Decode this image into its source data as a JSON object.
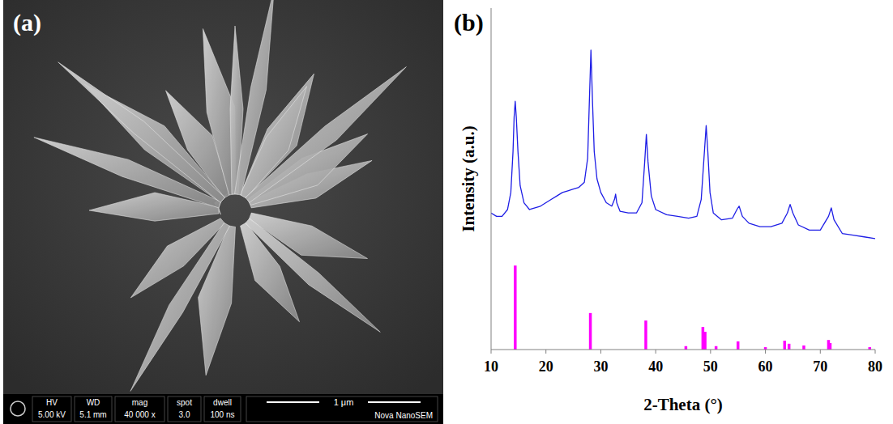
{
  "panel_labels": [
    "(a)",
    "(b)"
  ],
  "sem_image": {
    "info": [
      {
        "label": "HV",
        "value": "5.00 kV"
      },
      {
        "label": "WD",
        "value": "5.1 mm"
      },
      {
        "label": "mag",
        "value": "40 000 x"
      },
      {
        "label": "spot",
        "value": "3.0"
      },
      {
        "label": "dwell",
        "value": "100 ns"
      }
    ],
    "scale_bar": "1 μm",
    "instrument": "Nova NanoSEM"
  },
  "chart_data": {
    "type": "line",
    "x_label": "2-Theta (°)",
    "y_label": "Intensity (a.u.)",
    "xlim": [
      10,
      80
    ],
    "xticks": [
      10,
      20,
      30,
      40,
      50,
      60,
      70,
      80
    ],
    "ylim": [
      0,
      100
    ],
    "tick_labels": "x",
    "series": [
      {
        "type": "line",
        "color": "#1e1ee6",
        "x": [
          10,
          11,
          12,
          13,
          13.6,
          14.0,
          14.2,
          14.4,
          14.6,
          14.9,
          15.3,
          16,
          17,
          18,
          19,
          20,
          21,
          22,
          23,
          24,
          25,
          26,
          27,
          27.6,
          27.9,
          28.2,
          28.5,
          28.8,
          29.3,
          30,
          31,
          32,
          32.5,
          32.7,
          32.9,
          33.5,
          35,
          36.5,
          37.5,
          38,
          38.3,
          38.6,
          39.2,
          40,
          42,
          44,
          46,
          47.5,
          48.3,
          48.8,
          49.2,
          49.5,
          49.9,
          50.5,
          52,
          54,
          54.8,
          55.2,
          55.8,
          57,
          59,
          61,
          63,
          64,
          64.5,
          65,
          66,
          68,
          70,
          71.5,
          72,
          72.5,
          74,
          76,
          78,
          80
        ],
        "values": [
          40,
          39,
          39,
          41,
          46,
          58,
          68,
          72.7,
          68,
          58,
          48,
          43,
          41,
          41.5,
          42,
          43,
          44,
          45,
          46,
          46.5,
          47,
          47.5,
          49,
          56,
          72,
          87.7,
          72,
          58,
          50,
          46,
          43,
          42,
          44,
          45.5,
          43,
          40.5,
          40,
          40,
          43,
          55,
          63,
          55,
          45,
          41,
          39.5,
          39,
          38.5,
          39,
          44,
          56,
          65.6,
          58,
          46,
          40,
          38,
          38.5,
          41,
          42,
          39,
          37,
          36,
          36,
          37,
          40,
          42.5,
          40,
          36.5,
          35,
          35,
          39,
          41.5,
          38,
          34,
          33.5,
          33,
          32.5
        ]
      },
      {
        "type": "stem",
        "color": "#ff00ff",
        "x": [
          14.4,
          28.1,
          38.2,
          45.5,
          48.6,
          49.0,
          51,
          55,
          60,
          63.5,
          64.3,
          67,
          71.5,
          71.8,
          79
        ],
        "values": [
          24.6,
          10.7,
          8.5,
          1,
          6.6,
          5.2,
          1,
          2.4,
          0.7,
          2.6,
          1.7,
          1.2,
          2.8,
          1.9,
          0.7
        ]
      }
    ]
  }
}
